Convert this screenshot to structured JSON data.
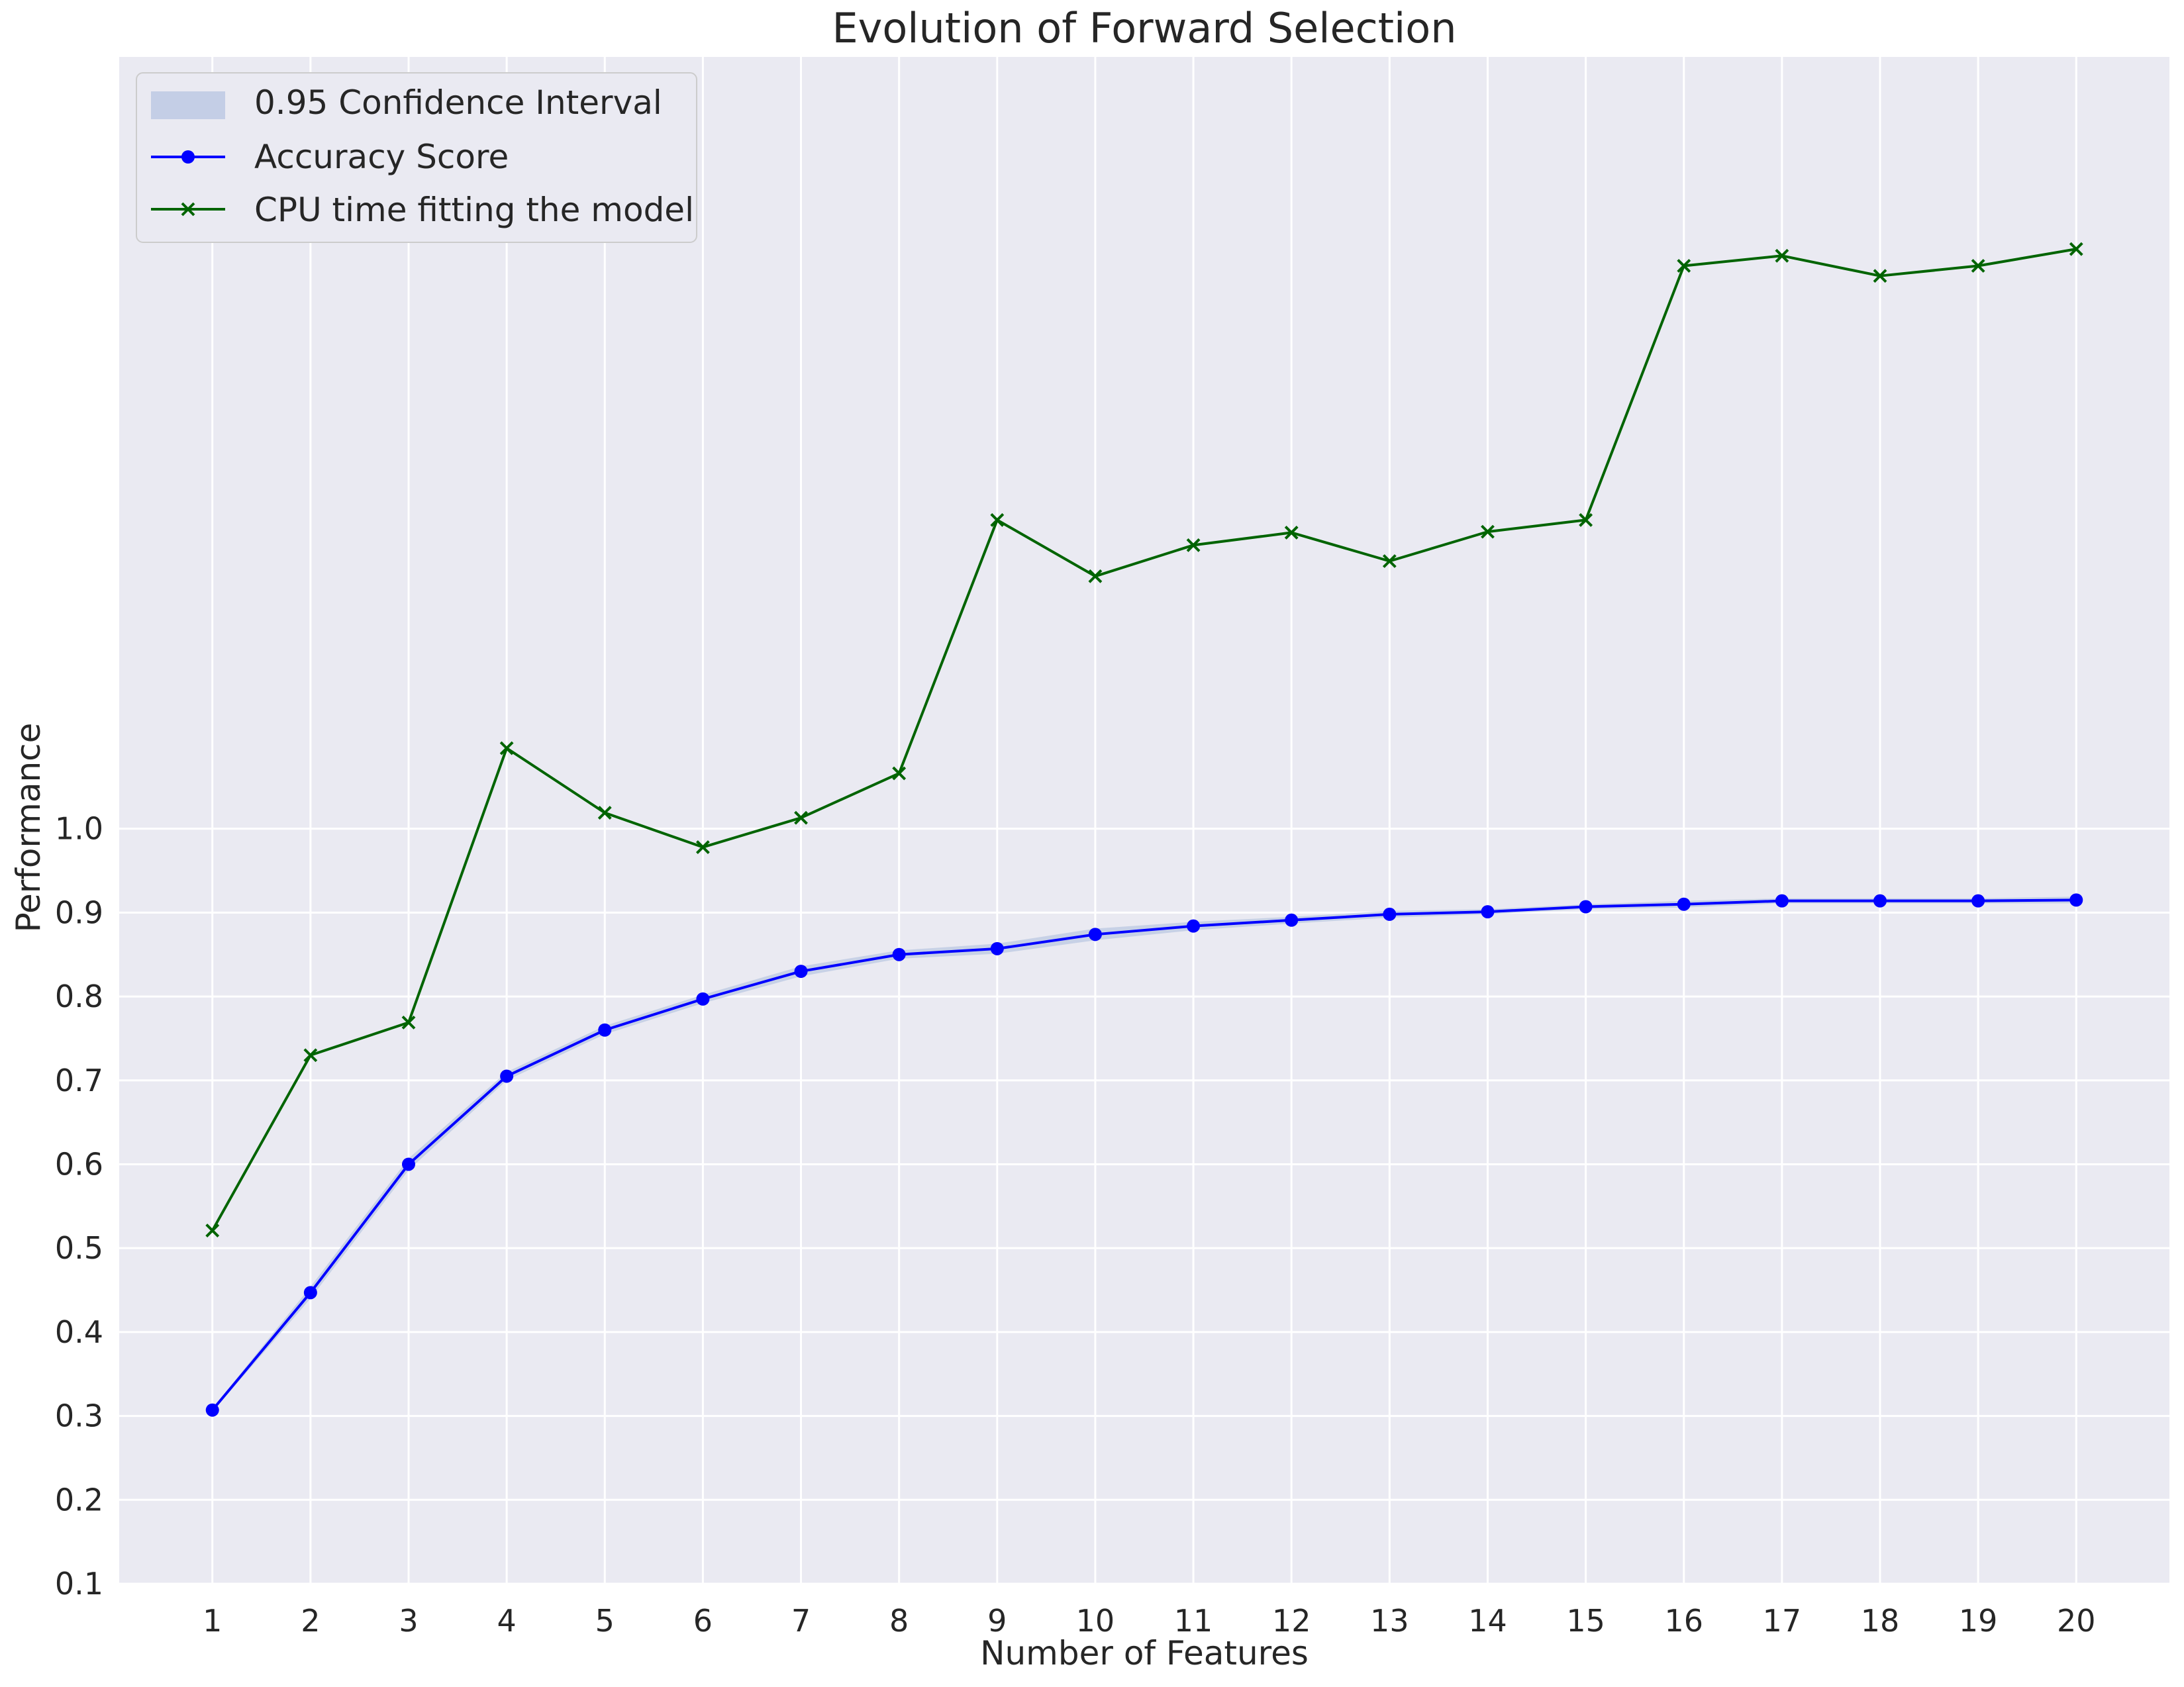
{
  "chart_data": {
    "type": "line",
    "title": "Evolution of Forward Selection",
    "xlabel": "Number of Features",
    "ylabel": "Performance",
    "x": [
      1,
      2,
      3,
      4,
      5,
      6,
      7,
      8,
      9,
      10,
      11,
      12,
      13,
      14,
      15,
      16,
      17,
      18,
      19,
      20
    ],
    "xlim": [
      0.05,
      20.95
    ],
    "ylim": [
      0.1,
      1.92
    ],
    "yticks": [
      0.1,
      0.2,
      0.3,
      0.4,
      0.5,
      0.6,
      0.7,
      0.8,
      0.9,
      1.0
    ],
    "ytick_labels": [
      "0.1",
      "0.2",
      "0.3",
      "0.4",
      "0.5",
      "0.6",
      "0.7",
      "0.8",
      "0.9",
      "1.0"
    ],
    "xtick_labels": [
      "1",
      "2",
      "3",
      "4",
      "5",
      "6",
      "7",
      "8",
      "9",
      "10",
      "11",
      "12",
      "13",
      "14",
      "15",
      "16",
      "17",
      "18",
      "19",
      "20"
    ],
    "grid": true,
    "legend_position": "top-left",
    "background_color": "#eaeaf2",
    "series": [
      {
        "name": "Accuracy Score",
        "color": "#0000ff",
        "marker": "circle",
        "values": [
          0.307,
          0.447,
          0.6,
          0.705,
          0.76,
          0.797,
          0.83,
          0.85,
          0.857,
          0.874,
          0.884,
          0.891,
          0.898,
          0.901,
          0.907,
          0.91,
          0.914,
          0.914,
          0.914,
          0.915
        ],
        "ci_lower": [
          0.305,
          0.44,
          0.593,
          0.7,
          0.755,
          0.792,
          0.824,
          0.845,
          0.851,
          0.867,
          0.879,
          0.887,
          0.894,
          0.898,
          0.904,
          0.906,
          0.911,
          0.911,
          0.911,
          0.911
        ],
        "ci_upper": [
          0.309,
          0.454,
          0.607,
          0.71,
          0.765,
          0.802,
          0.836,
          0.855,
          0.863,
          0.881,
          0.889,
          0.895,
          0.902,
          0.904,
          0.91,
          0.914,
          0.917,
          0.917,
          0.917,
          0.919
        ]
      },
      {
        "name": "CPU time fitting the model",
        "color": "#006400",
        "marker": "x",
        "values": [
          0.521,
          0.73,
          0.769,
          1.096,
          1.019,
          0.978,
          1.013,
          1.066,
          1.368,
          1.301,
          1.338,
          1.353,
          1.319,
          1.354,
          1.368,
          1.671,
          1.683,
          1.659,
          1.671,
          1.691
        ]
      }
    ],
    "ci_band": {
      "name": "0.95 Confidence Interval",
      "color": "#aabbdd"
    }
  }
}
